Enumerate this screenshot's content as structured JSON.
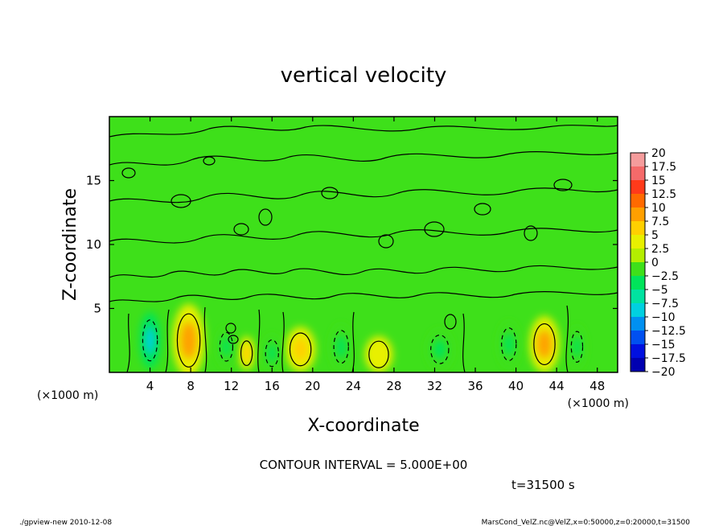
{
  "chart_data": {
    "type": "heatmap",
    "title": "vertical velocity",
    "xlabel": "X-coordinate",
    "ylabel": "Z-coordinate",
    "x_unit_left": "(×1000 m)",
    "x_unit_right": "(×1000 m)",
    "xlim": [
      0,
      50
    ],
    "ylim": [
      0,
      20
    ],
    "x_ticks": [
      4,
      8,
      12,
      16,
      20,
      24,
      28,
      32,
      36,
      40,
      44,
      48
    ],
    "y_ticks": [
      5,
      10,
      15
    ],
    "contour_interval_text": "CONTOUR INTERVAL = 5.000E+00",
    "time_text": "t=31500 s",
    "colorbar": {
      "levels": [
        "20",
        "17.5",
        "15",
        "12.5",
        "10",
        "7.5",
        "5",
        "2.5",
        "0",
        "−2.5",
        "−5",
        "−7.5",
        "−10",
        "−12.5",
        "−15",
        "−17.5",
        "−20"
      ],
      "colors": [
        "#f59c9c",
        "#f56a6a",
        "#ff3a1a",
        "#ff6a00",
        "#ffa000",
        "#ffd000",
        "#e8f000",
        "#b4ee00",
        "#3ee01a",
        "#00e45a",
        "#00e2a0",
        "#00d0e0",
        "#0090f0",
        "#0050f0",
        "#0010e0",
        "#0000b0",
        "#6a00c8"
      ]
    },
    "cells": [
      {
        "x": 7.8,
        "z": 2.5,
        "value": 8.5,
        "rx": 1.4,
        "rz": 2.6
      },
      {
        "x": 13.5,
        "z": 1.5,
        "value": 7,
        "rx": 0.7,
        "rz": 1.2
      },
      {
        "x": 18.8,
        "z": 1.8,
        "value": 7.5,
        "rx": 1.3,
        "rz": 1.6
      },
      {
        "x": 26.5,
        "z": 1.4,
        "value": 5,
        "rx": 1.2,
        "rz": 1.3
      },
      {
        "x": 42.8,
        "z": 2.2,
        "value": 8,
        "rx": 1.3,
        "rz": 2.0
      },
      {
        "x": 4.0,
        "z": 2.5,
        "value": -8,
        "rx": 0.9,
        "rz": 2.0
      },
      {
        "x": 11.5,
        "z": 2.0,
        "value": -3,
        "rx": 0.8,
        "rz": 1.4
      },
      {
        "x": 16.0,
        "z": 1.5,
        "value": -4,
        "rx": 0.8,
        "rz": 1.3
      },
      {
        "x": 22.8,
        "z": 2.0,
        "value": -3,
        "rx": 0.9,
        "rz": 1.6
      },
      {
        "x": 32.5,
        "z": 1.8,
        "value": -4,
        "rx": 1.1,
        "rz": 1.4
      },
      {
        "x": 39.3,
        "z": 2.2,
        "value": -4,
        "rx": 0.9,
        "rz": 1.6
      },
      {
        "x": 46.0,
        "z": 2.0,
        "value": -3,
        "rx": 0.7,
        "rz": 1.5
      }
    ]
  },
  "footer": {
    "left": "./gpview-new  2010-12-08",
    "right": "MarsCond_VelZ.nc@VelZ,x=0:50000,z=0:20000,t=31500"
  }
}
